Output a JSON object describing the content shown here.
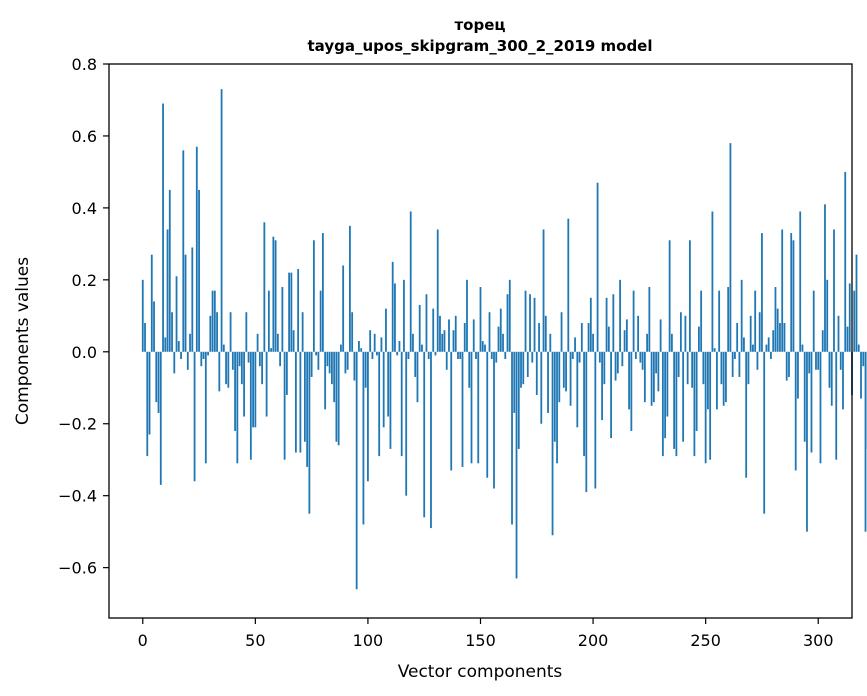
{
  "chart_data": {
    "type": "bar",
    "title_line1": "торец",
    "title_line2": "tayga_upos_skipgram_300_2_2019 model",
    "xlabel": "Vector components",
    "ylabel": "Components values",
    "xlim": [
      -15,
      315
    ],
    "ylim": [
      -0.74,
      0.8
    ],
    "x_ticks": [
      0,
      50,
      100,
      150,
      200,
      250,
      300
    ],
    "x_tick_labels": [
      "0",
      "50",
      "100",
      "150",
      "200",
      "250",
      "300"
    ],
    "y_ticks": [
      -0.6,
      -0.4,
      -0.2,
      0.0,
      0.2,
      0.4,
      0.6,
      0.8
    ],
    "y_tick_labels": [
      "−0.6",
      "−0.4",
      "−0.2",
      "0.0",
      "0.2",
      "0.4",
      "0.6",
      "0.8"
    ],
    "grid": false,
    "bar_color": "#1f77b4",
    "values": [
      0.2,
      0.08,
      -0.29,
      -0.23,
      0.27,
      0.14,
      -0.14,
      -0.17,
      -0.37,
      0.69,
      0.04,
      0.34,
      0.45,
      0.11,
      -0.06,
      0.21,
      0.03,
      -0.02,
      0.56,
      0.27,
      -0.05,
      0.05,
      0.29,
      -0.36,
      0.57,
      0.45,
      -0.04,
      -0.02,
      -0.31,
      -0.01,
      0.1,
      0.17,
      0.17,
      0.11,
      -0.11,
      0.73,
      0.02,
      -0.09,
      -0.1,
      0.11,
      -0.05,
      -0.22,
      -0.31,
      -0.04,
      -0.09,
      -0.18,
      0.11,
      -0.03,
      -0.3,
      -0.21,
      -0.21,
      0.05,
      -0.04,
      -0.09,
      0.36,
      -0.18,
      0.17,
      0.01,
      0.32,
      0.31,
      0.05,
      -0.04,
      0.18,
      -0.3,
      -0.12,
      0.22,
      0.22,
      0.06,
      -0.28,
      0.23,
      -0.28,
      0.11,
      -0.25,
      -0.32,
      -0.45,
      -0.07,
      0.31,
      -0.01,
      -0.05,
      0.17,
      0.33,
      -0.16,
      -0.04,
      -0.06,
      -0.09,
      -0.14,
      -0.25,
      -0.26,
      0.02,
      0.24,
      -0.06,
      -0.05,
      0.35,
      0.11,
      -0.08,
      -0.66,
      0.03,
      0.01,
      -0.48,
      -0.1,
      -0.36,
      0.06,
      -0.02,
      0.05,
      -0.01,
      -0.29,
      0.04,
      -0.21,
      0.12,
      -0.18,
      -0.27,
      0.25,
      0.19,
      -0.01,
      0.03,
      -0.29,
      0.2,
      -0.4,
      -0.02,
      0.39,
      0.05,
      -0.07,
      -0.14,
      0.13,
      0.02,
      -0.46,
      0.16,
      -0.02,
      -0.49,
      0.12,
      -0.01,
      0.34,
      0.1,
      0.05,
      0.06,
      -0.05,
      0.09,
      -0.33,
      0.06,
      0.1,
      -0.02,
      -0.02,
      -0.32,
      0.08,
      0.2,
      -0.1,
      -0.31,
      0.09,
      -0.02,
      -0.31,
      0.18,
      0.03,
      0.02,
      -0.35,
      0.11,
      -0.02,
      -0.38,
      -0.03,
      0.07,
      0.12,
      0.05,
      -0.02,
      0.16,
      0.2,
      -0.48,
      -0.17,
      -0.63,
      -0.27,
      -0.1,
      -0.09,
      0.17,
      -0.07,
      0.16,
      -0.03,
      0.15,
      -0.12,
      0.08,
      -0.2,
      0.34,
      0.1,
      -0.17,
      0.05,
      -0.51,
      -0.25,
      -0.31,
      -0.14,
      0.11,
      -0.1,
      -0.11,
      0.37,
      -0.15,
      -0.02,
      0.04,
      -0.21,
      -0.03,
      0.08,
      -0.29,
      -0.39,
      0.08,
      0.15,
      0.05,
      -0.38,
      0.47,
      -0.03,
      -0.19,
      -0.09,
      0.15,
      0.07,
      -0.24,
      0.16,
      -0.08,
      -0.06,
      0.2,
      -0.04,
      0.06,
      0.09,
      -0.16,
      -0.22,
      0.17,
      -0.02,
      0.1,
      -0.03,
      -0.05,
      -0.14,
      0.05,
      0.18,
      -0.15,
      -0.14,
      -0.06,
      -0.11,
      0.09,
      -0.29,
      -0.24,
      -0.18,
      0.31,
      0.05,
      -0.27,
      -0.29,
      -0.07,
      0.11,
      -0.25,
      0.1,
      -0.09,
      0.31,
      -0.1,
      -0.29,
      -0.22,
      0.07,
      0.17,
      -0.09,
      -0.31,
      -0.16,
      -0.3,
      0.39,
      0.01,
      -0.16,
      0.17,
      -0.09,
      -0.15,
      -0.14,
      0.18,
      0.58,
      -0.07,
      -0.02,
      0.08,
      -0.07,
      0.2,
      0.04,
      -0.35,
      -0.09,
      0.1,
      0.02,
      0.17,
      -0.05,
      0.11,
      0.33,
      -0.45,
      0.02,
      0.04,
      -0.02,
      0.06,
      0.18,
      0.12,
      0.08,
      0.34,
      0.08,
      -0.08,
      -0.07,
      0.33,
      0.31,
      -0.33,
      -0.13,
      0.39,
      0.02,
      -0.25,
      -0.5,
      -0.06,
      -0.28,
      0.17,
      -0.05,
      -0.05,
      -0.31,
      0.06,
      0.41,
      0.2,
      -0.1,
      -0.15,
      0.34,
      -0.3,
      0.1,
      -0.05,
      -0.16,
      0.5,
      0.07,
      0.19,
      -0.12,
      0.17,
      0.27,
      0.02,
      -0.13,
      -0.04,
      -0.5,
      -0.27
    ]
  }
}
